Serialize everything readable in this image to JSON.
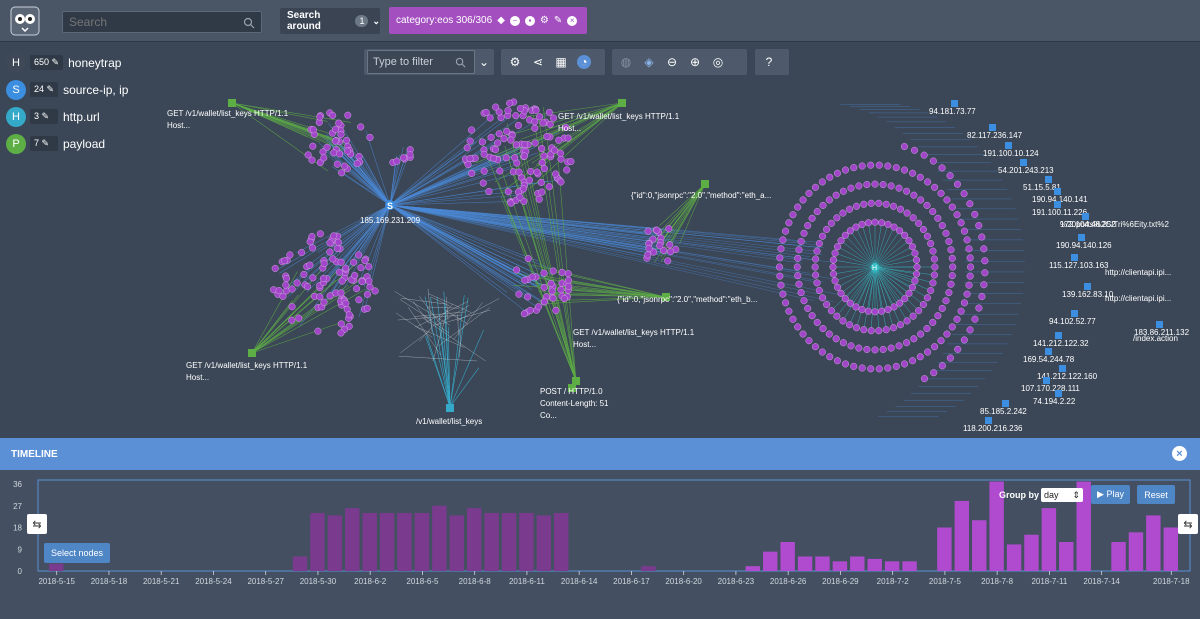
{
  "topbar": {
    "search_placeholder": "Search",
    "search_around_label": "Search around",
    "search_around_count": "1",
    "category_chip": "category:eos 306/306"
  },
  "legend": {
    "items": [
      {
        "letter": "H",
        "count": "650",
        "label": "honeytrap",
        "color": "#3e4857"
      },
      {
        "letter": "S",
        "count": "24",
        "label": "source-ip, ip",
        "color": "#3b8ee0"
      },
      {
        "letter": "H",
        "count": "3",
        "label": "http.url",
        "color": "#35a9c8"
      },
      {
        "letter": "P",
        "count": "7",
        "label": "payload",
        "color": "#5eae46"
      }
    ]
  },
  "toolbar": {
    "filter_placeholder": "Type to filter"
  },
  "graph": {
    "hub_s_label": "185.169.231.209",
    "hub_s_letter": "S",
    "hub_h_letter": "H",
    "payload_labels": [
      "GET /v1/wallet/list_keys HTTP/1.1",
      "Host...",
      "GET /v1/wallet/list_keys HTTP/1.1",
      "Host...",
      "{\"id\":0,\"jsonrpc\":\"2.0\",\"method\":\"eth_a...",
      "{\"id\":0,\"jsonrpc\":\"2.0\",\"method\":\"eth_b...",
      "GET /v1/wallet/list_keys HTTP/1.1",
      "Host...",
      "GET /v1/wallet/list_keys HTTP/1.1",
      "Host...",
      "POST / HTTP/1.0",
      "Content-Length: 51",
      "Co..."
    ],
    "url_label": "/v1/wallet/list_keys",
    "ip_labels": [
      "94.181.73.77",
      "82.117.236.147",
      "191.100.10.124",
      "54.201.243.213",
      "51.15.5.81",
      "190.94.140.141",
      "191.100.11.226",
      "172.104.48.252",
      "190.94.140.126",
      "115.127.103.163",
      "139.162.83.10",
      "94.102.52.77",
      "183.86.211.132",
      "141.212.122.32",
      "169.54.244.78",
      "141.212.122.160",
      "107.170.228.111",
      "74.194.2.22",
      "85.185.2.242",
      "118.200.216.236"
    ],
    "url_side_labels": [
      "http://clientapi.ipi...",
      "http://clientapi.ipi...",
      "/index.action",
      "%20ports%2C/Tri%6Eity.txt%2"
    ]
  },
  "timeline": {
    "title": "TIMELINE",
    "group_by_label": "Group by",
    "group_by_value": "day",
    "play_label": "▶ Play",
    "reset_label": "Reset",
    "select_nodes_label": "Select nodes",
    "y_ticks": [
      "36",
      "27",
      "18",
      "9",
      "0"
    ],
    "x_ticks": [
      "2018-5-15",
      "2018-5-18",
      "2018-5-21",
      "2018-5-24",
      "2018-5-27",
      "2018-5-30",
      "2018-6-2",
      "2018-6-5",
      "2018-6-8",
      "2018-6-11",
      "2018-6-14",
      "2018-6-17",
      "2018-6-20",
      "2018-6-23",
      "2018-6-26",
      "2018-6-29",
      "2018-7-2",
      "2018-7-5",
      "2018-7-8",
      "2018-7-11",
      "2018-7-14",
      "2018-7-18"
    ]
  },
  "chart_data": {
    "type": "bar",
    "ylim": [
      0,
      36
    ],
    "x": [
      "2018-5-15",
      "2018-5-16",
      "2018-5-17",
      "2018-5-18",
      "2018-5-19",
      "2018-5-20",
      "2018-5-21",
      "2018-5-22",
      "2018-5-23",
      "2018-5-24",
      "2018-5-25",
      "2018-5-26",
      "2018-5-27",
      "2018-5-28",
      "2018-5-29",
      "2018-5-30",
      "2018-5-31",
      "2018-6-1",
      "2018-6-2",
      "2018-6-3",
      "2018-6-4",
      "2018-6-5",
      "2018-6-6",
      "2018-6-7",
      "2018-6-8",
      "2018-6-9",
      "2018-6-10",
      "2018-6-11",
      "2018-6-12",
      "2018-6-13",
      "2018-6-14",
      "2018-6-15",
      "2018-6-16",
      "2018-6-17",
      "2018-6-18",
      "2018-6-19",
      "2018-6-20",
      "2018-6-21",
      "2018-6-22",
      "2018-6-23",
      "2018-6-24",
      "2018-6-25",
      "2018-6-26",
      "2018-6-27",
      "2018-6-28",
      "2018-6-29",
      "2018-6-30",
      "2018-7-1",
      "2018-7-2",
      "2018-7-3",
      "2018-7-4",
      "2018-7-5",
      "2018-7-6",
      "2018-7-7",
      "2018-7-8",
      "2018-7-9",
      "2018-7-10",
      "2018-7-11",
      "2018-7-12",
      "2018-7-13",
      "2018-7-14",
      "2018-7-15",
      "2018-7-16",
      "2018-7-17",
      "2018-7-18"
    ],
    "values": [
      3,
      0,
      0,
      0,
      0,
      0,
      0,
      0,
      0,
      0,
      0,
      0,
      0,
      0,
      6,
      24,
      23,
      26,
      24,
      24,
      24,
      24,
      27,
      23,
      26,
      24,
      24,
      24,
      23,
      24,
      0,
      0,
      0,
      0,
      2,
      0,
      0,
      0,
      0,
      0,
      2,
      8,
      12,
      6,
      6,
      4,
      6,
      5,
      4,
      4,
      0,
      18,
      29,
      21,
      37,
      11,
      15,
      26,
      12,
      37,
      0,
      12,
      16,
      23,
      18
    ]
  }
}
